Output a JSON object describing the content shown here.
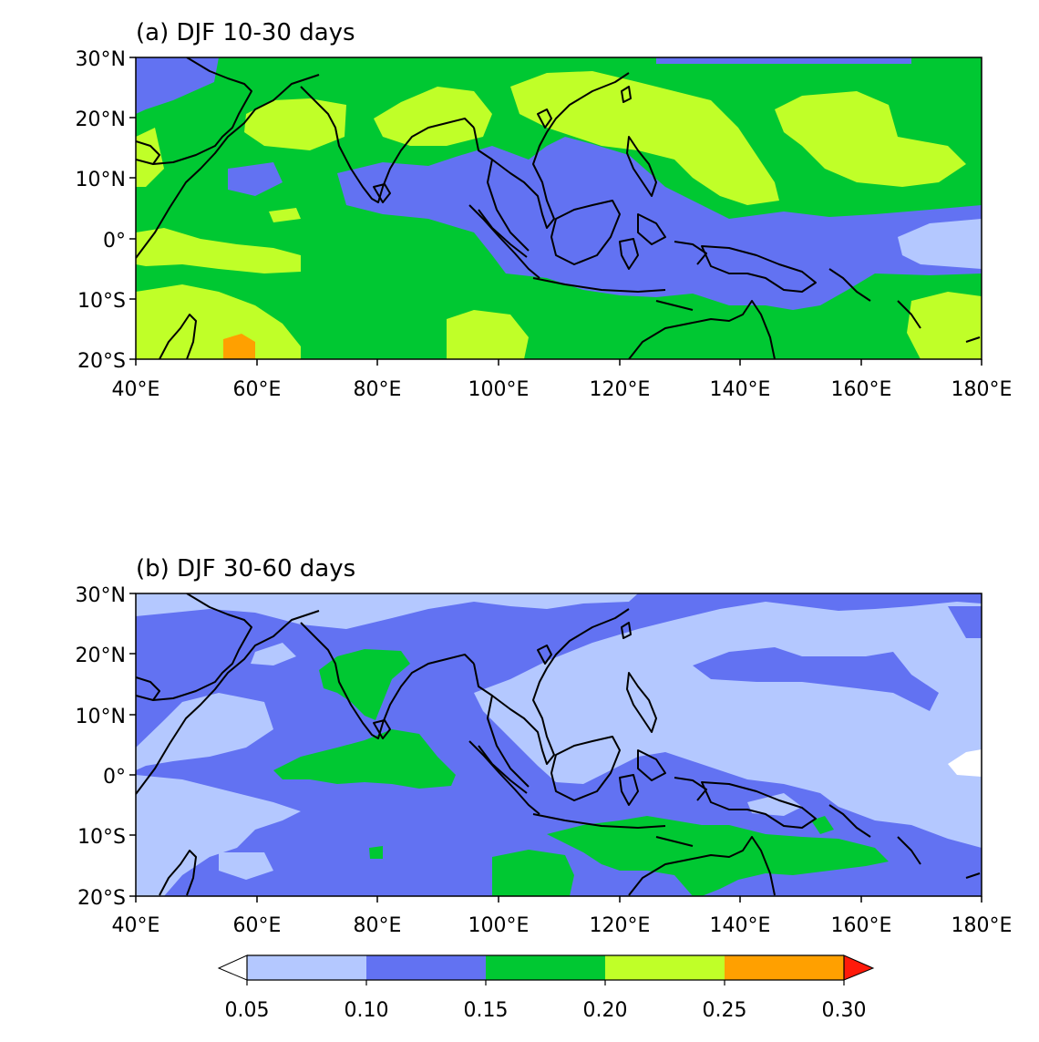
{
  "colors": {
    "c005_010": "#b4c8ff",
    "c010_015": "#6272f2",
    "c015_020": "#00c832",
    "c020_025": "#c0ff28",
    "c025_030": "#ffa000",
    "over": "#ff1a0a",
    "under": "#ffffff"
  },
  "panels": [
    {
      "title": "(a) DJF 10-30 days"
    },
    {
      "title": "(b) DJF 30-60 days"
    }
  ],
  "axes": {
    "lat_labels": [
      "30°N",
      "20°N",
      "10°N",
      "0°",
      "10°S",
      "20°S"
    ],
    "lon_labels": [
      "40°E",
      "60°E",
      "80°E",
      "100°E",
      "120°E",
      "140°E",
      "160°E",
      "180°E"
    ]
  },
  "colorbar": {
    "levels": [
      "0.05",
      "0.10",
      "0.15",
      "0.20",
      "0.25",
      "0.30"
    ],
    "extend": "both"
  }
}
